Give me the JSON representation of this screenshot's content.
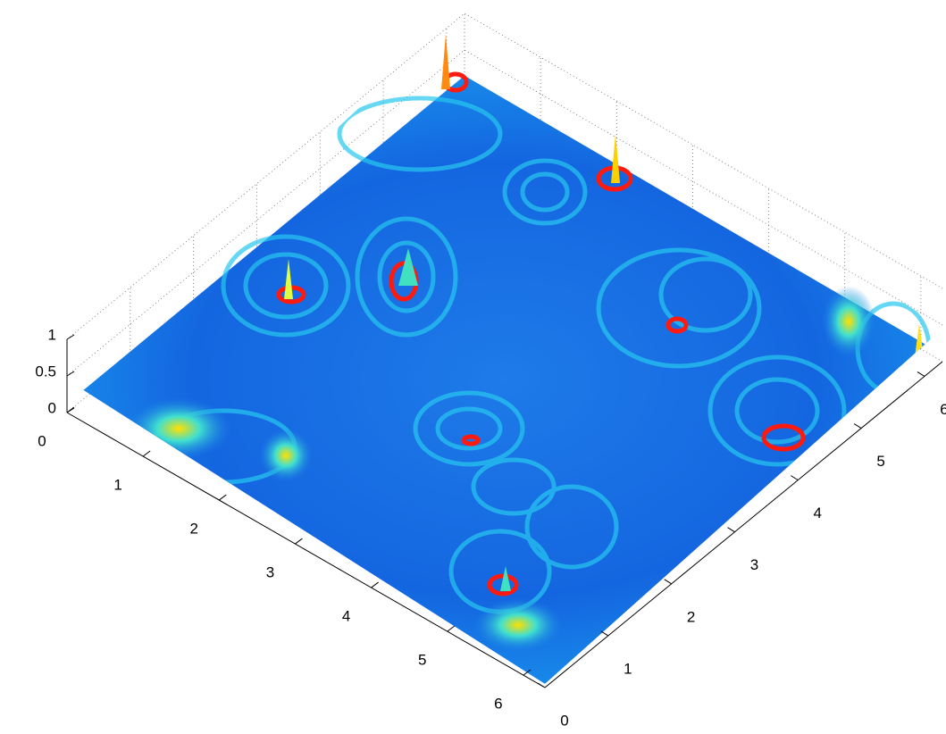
{
  "chart_data": {
    "type": "surface",
    "xlim": [
      0,
      6.2832
    ],
    "xticks": [
      0,
      1,
      2,
      3,
      4,
      5,
      6
    ],
    "ylim": [
      0,
      6.2832
    ],
    "yticks": [
      0,
      1,
      2,
      3,
      4,
      5,
      6
    ],
    "zlim": [
      0,
      1
    ],
    "zticks": [
      0,
      0.5,
      1
    ],
    "grid": true
  }
}
